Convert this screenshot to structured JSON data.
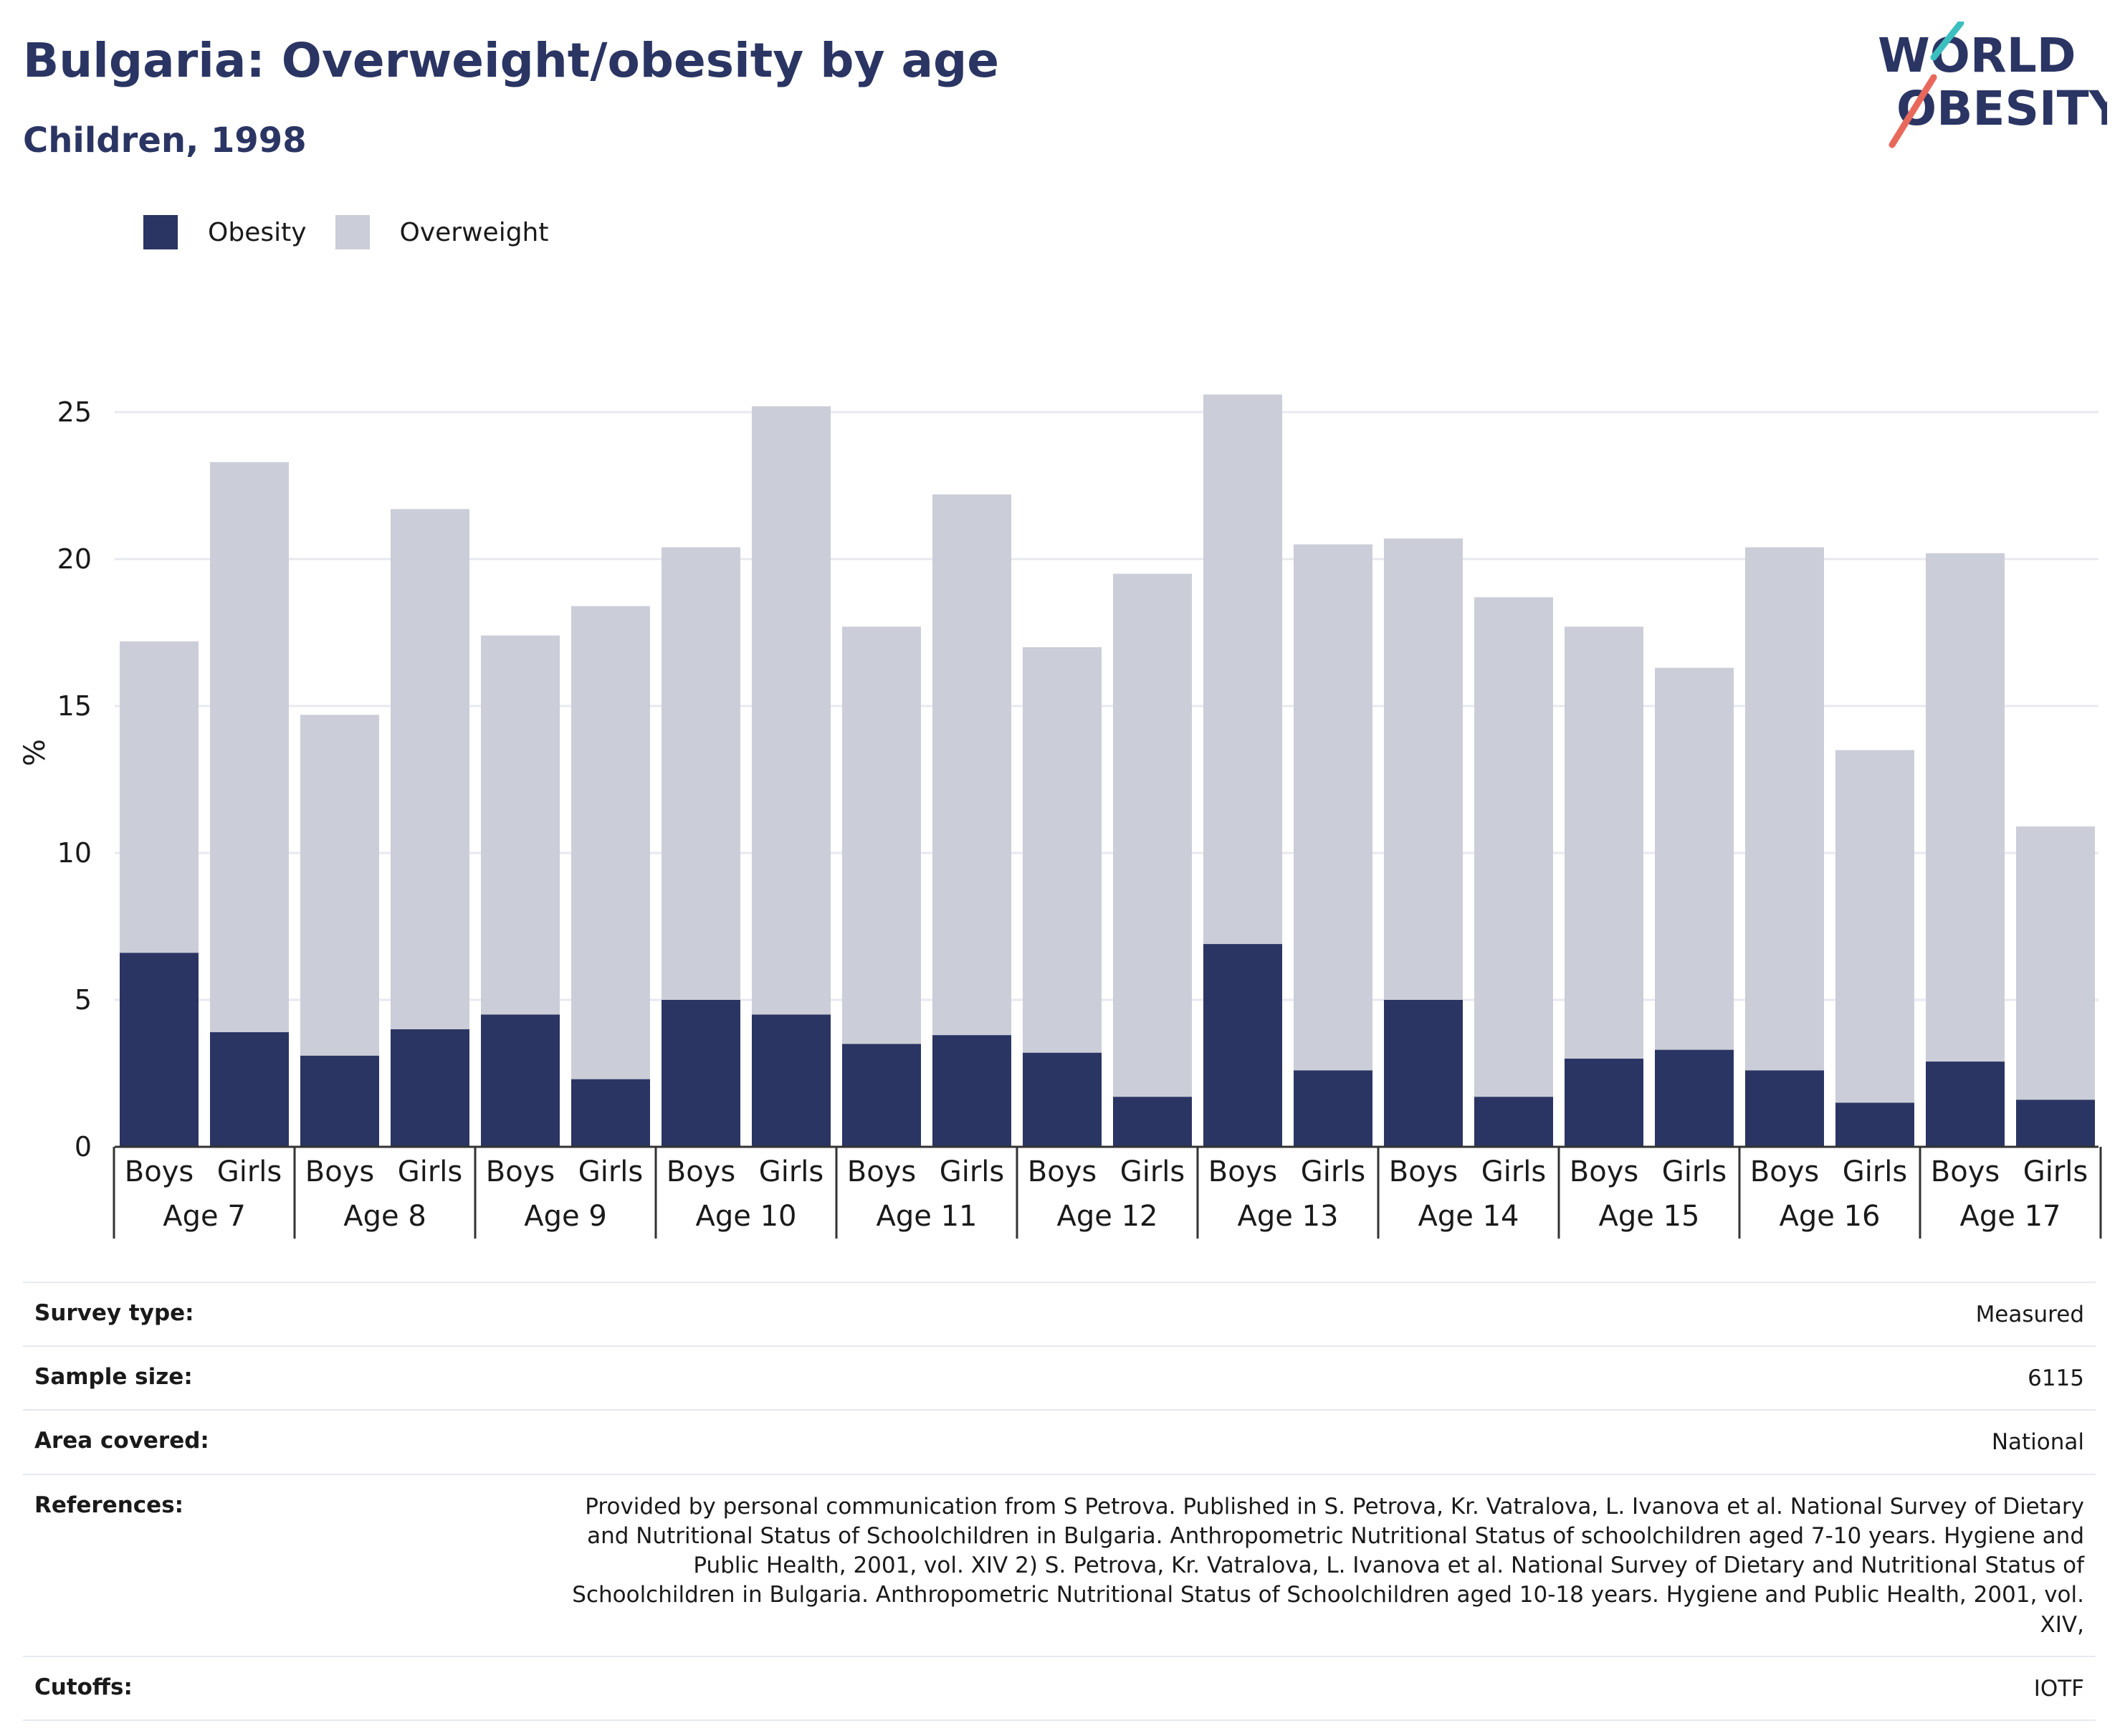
{
  "header": {
    "title": "Bulgaria: Overweight/obesity by age",
    "subtitle": "Children, 1998"
  },
  "logo": {
    "line1": "WORLD",
    "line2": "OBESITY"
  },
  "legend": {
    "items": [
      {
        "label": "Obesity",
        "color": "#2b3563"
      },
      {
        "label": "Overweight",
        "color": "#cbcdd8"
      }
    ]
  },
  "chart_data": {
    "type": "bar",
    "stacked": true,
    "ylabel": "%",
    "ylim": [
      0,
      27
    ],
    "yticks": [
      0,
      5,
      10,
      15,
      20,
      25
    ],
    "grid": true,
    "legend_position": "top-left",
    "groups": [
      "Age 7",
      "Age 8",
      "Age 9",
      "Age 10",
      "Age 11",
      "Age 12",
      "Age 13",
      "Age 14",
      "Age 15",
      "Age 16",
      "Age 17"
    ],
    "sub_categories": [
      "Boys",
      "Girls"
    ],
    "series": [
      {
        "name": "Obesity",
        "color": "#2b3563",
        "values": [
          6.6,
          3.9,
          3.1,
          4.0,
          4.5,
          2.3,
          5.0,
          4.5,
          3.5,
          3.8,
          3.2,
          1.7,
          6.9,
          2.6,
          5.0,
          1.7,
          3.0,
          3.3,
          2.6,
          1.5,
          2.9,
          1.6
        ]
      },
      {
        "name": "Overweight",
        "color": "#cbcdd8",
        "totals": [
          17.2,
          23.3,
          14.7,
          21.7,
          17.4,
          18.4,
          20.4,
          25.2,
          17.7,
          22.2,
          17.0,
          19.5,
          25.6,
          20.5,
          20.7,
          18.7,
          17.7,
          16.3,
          20.4,
          13.5,
          20.2,
          10.9
        ]
      }
    ]
  },
  "info": {
    "rows": [
      {
        "label": "Survey type:",
        "value": "Measured"
      },
      {
        "label": "Sample size:",
        "value": "6115"
      },
      {
        "label": "Area covered:",
        "value": "National"
      },
      {
        "label": "References:",
        "value": "Provided by personal communication from S Petrova. Published in S. Petrova, Kr. Vatralova, L. Ivanova et al. National Survey of Dietary and Nutritional Status of Schoolchildren in Bulgaria. Anthropometric Nutritional Status of schoolchildren aged 7-10 years. Hygiene and Public Health, 2001, vol. XIV 2) S. Petrova, Kr. Vatralova, L. Ivanova et al. National Survey of Dietary and Nutritional Status of Schoolchildren in Bulgaria. Anthropometric Nutritional Status of Schoolchildren aged 10-18 years. Hygiene and Public Health, 2001, vol. XIV,"
      },
      {
        "label": "Cutoffs:",
        "value": "IOTF"
      }
    ]
  }
}
